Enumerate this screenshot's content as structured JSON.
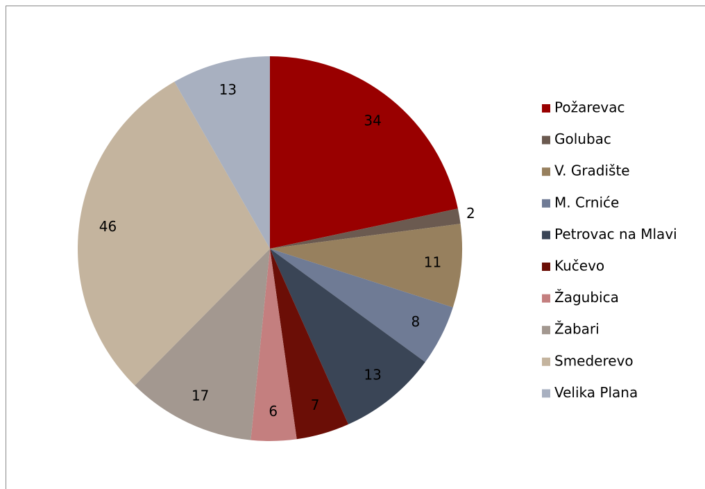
{
  "chart_data": {
    "type": "pie",
    "categories": [
      "Požarevac",
      "Golubac",
      "V. Gradište",
      "M. Crniće",
      "Petrovac na Mlavi",
      "Kučevo",
      "Žagubica",
      "Žabari",
      "Smederevo",
      "Velika Plana"
    ],
    "values": [
      34,
      2,
      11,
      8,
      13,
      7,
      6,
      17,
      46,
      13
    ],
    "colors": [
      "#990000",
      "#6b5a50",
      "#97805e",
      "#6f7b95",
      "#3a4556",
      "#6b0e06",
      "#c47f7f",
      "#a39890",
      "#c4b49e",
      "#a8b0c0"
    ],
    "legend": "right"
  }
}
